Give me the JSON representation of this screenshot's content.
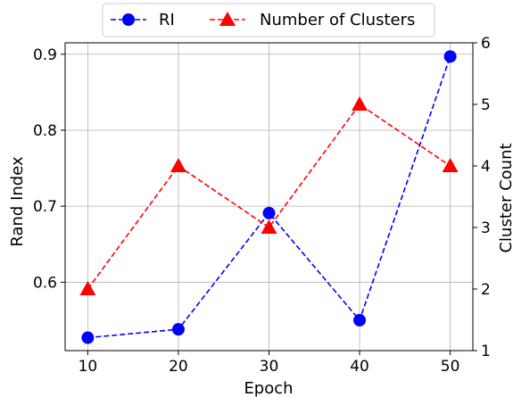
{
  "chart_data": {
    "type": "line",
    "x": [
      10,
      20,
      30,
      40,
      50
    ],
    "xlabel": "Epoch",
    "ylabel_left": "Rand Index",
    "ylabel_right": "Cluster Count",
    "xlim": [
      7.5,
      52.5
    ],
    "ylim_left": [
      0.51,
      0.915
    ],
    "ylim_right": [
      1,
      6
    ],
    "xticks": [
      10,
      20,
      30,
      40,
      50
    ],
    "yticks_left": [
      0.6,
      0.7,
      0.8,
      0.9
    ],
    "yticks_right": [
      1,
      2,
      3,
      4,
      5,
      6
    ],
    "grid": true,
    "legend_position": "top-center",
    "series": [
      {
        "name": "RI",
        "axis": "left",
        "values": [
          0.527,
          0.538,
          0.691,
          0.55,
          0.897
        ],
        "color": "#0000ff",
        "marker": "circle",
        "linestyle": "dashed"
      },
      {
        "name": "Number of Clusters",
        "axis": "right",
        "values": [
          2,
          4,
          3,
          5,
          4
        ],
        "color": "#ff0000",
        "marker": "triangle",
        "linestyle": "dashed"
      }
    ]
  }
}
